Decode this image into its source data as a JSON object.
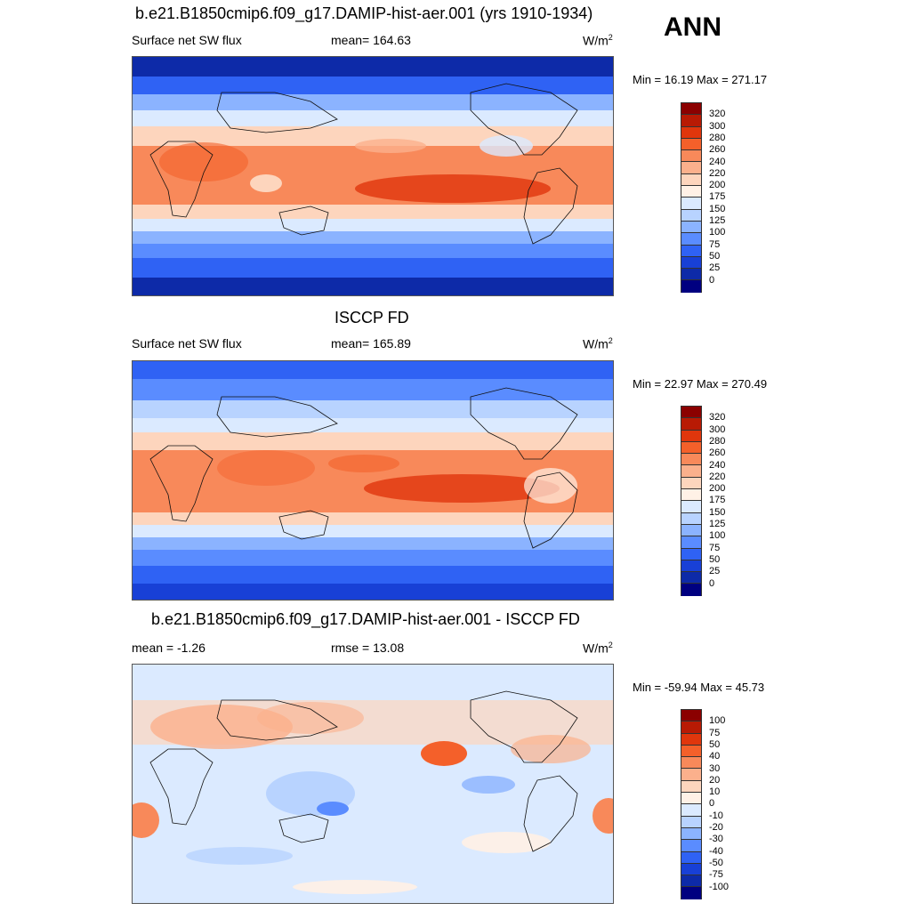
{
  "season": "ANN",
  "panels": [
    {
      "title": "b.e21.B1850cmip6.f09_g17.DAMIP-hist-aer.001 (yrs 1910-1934)",
      "left_label": "Surface net SW flux",
      "center_label": "mean= 164.63",
      "units": "W/m",
      "units_sup": "2",
      "minmax": "Min =  16.19 Max = 271.17",
      "colorbar_labels": [
        "320",
        "300",
        "280",
        "260",
        "240",
        "220",
        "200",
        "175",
        "150",
        "125",
        "100",
        "75",
        "50",
        "25",
        "0"
      ],
      "colorbar_colors": [
        "#8b0000",
        "#b81a04",
        "#e0360c",
        "#f4602a",
        "#f8895a",
        "#fbb08c",
        "#fdd5bd",
        "#fff1e6",
        "#dbeaff",
        "#b8d3ff",
        "#8bb3ff",
        "#5a8cff",
        "#2f62f4",
        "#1840d6",
        "#0d2aa8",
        "#000080"
      ]
    },
    {
      "title": "ISCCP FD",
      "left_label": "Surface net SW flux",
      "center_label": "mean= 165.89",
      "units": "W/m",
      "units_sup": "2",
      "minmax": "Min =  22.97 Max = 270.49",
      "colorbar_labels": [
        "320",
        "300",
        "280",
        "260",
        "240",
        "220",
        "200",
        "175",
        "150",
        "125",
        "100",
        "75",
        "50",
        "25",
        "0"
      ],
      "colorbar_colors": [
        "#8b0000",
        "#b81a04",
        "#e0360c",
        "#f4602a",
        "#f8895a",
        "#fbb08c",
        "#fdd5bd",
        "#fff1e6",
        "#dbeaff",
        "#b8d3ff",
        "#8bb3ff",
        "#5a8cff",
        "#2f62f4",
        "#1840d6",
        "#0d2aa8",
        "#000080"
      ]
    },
    {
      "title": "b.e21.B1850cmip6.f09_g17.DAMIP-hist-aer.001 - ISCCP FD",
      "left_label": "mean =  -1.26",
      "center_label": "rmse =  13.08",
      "units": "W/m",
      "units_sup": "2",
      "minmax": "Min = -59.94 Max =  45.73",
      "colorbar_labels": [
        "100",
        "75",
        "50",
        "40",
        "30",
        "20",
        "10",
        "0",
        "-10",
        "-20",
        "-30",
        "-40",
        "-50",
        "-75",
        "-100"
      ],
      "colorbar_colors": [
        "#8b0000",
        "#b81a04",
        "#e0360c",
        "#f4602a",
        "#f8895a",
        "#fbb08c",
        "#fdd5bd",
        "#fff1e6",
        "#dbeaff",
        "#b8d3ff",
        "#8bb3ff",
        "#5a8cff",
        "#2f62f4",
        "#1840d6",
        "#0d2aa8",
        "#000080"
      ]
    }
  ]
}
